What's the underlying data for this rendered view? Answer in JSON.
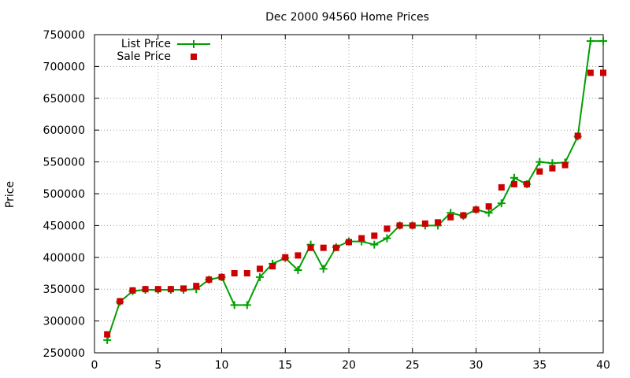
{
  "chart_data": {
    "type": "line",
    "title": "Dec 2000 94560 Home Prices",
    "xlabel": "",
    "ylabel": "Price",
    "xlim": [
      0,
      40
    ],
    "ylim": [
      250000,
      750000
    ],
    "x_ticks": [
      "0",
      "5",
      "10",
      "15",
      "20",
      "25",
      "30",
      "35",
      "40"
    ],
    "y_ticks": [
      "250000",
      "300000",
      "350000",
      "400000",
      "450000",
      "500000",
      "550000",
      "600000",
      "650000",
      "700000",
      "750000"
    ],
    "grid": true,
    "legend_position": "top-left",
    "series": [
      {
        "name": "List Price",
        "style": "line-with-plus-markers",
        "color": "#00a000",
        "x": [
          1,
          2,
          3,
          4,
          5,
          6,
          7,
          8,
          9,
          10,
          11,
          12,
          13,
          14,
          15,
          16,
          17,
          18,
          19,
          20,
          21,
          22,
          23,
          24,
          25,
          26,
          27,
          28,
          29,
          30,
          31,
          32,
          33,
          34,
          35,
          36,
          37,
          38,
          39,
          40
        ],
        "y": [
          270000,
          330000,
          347000,
          349000,
          349000,
          349000,
          349000,
          350000,
          365000,
          369000,
          325000,
          325000,
          369000,
          390000,
          399000,
          380000,
          420000,
          382000,
          416000,
          425000,
          425000,
          420000,
          430000,
          450000,
          450000,
          450000,
          450000,
          470000,
          465000,
          475000,
          470000,
          485000,
          525000,
          515000,
          550000,
          548000,
          549000,
          590000,
          740000,
          740000
        ]
      },
      {
        "name": "Sale Price",
        "style": "square-markers",
        "color": "#cc0000",
        "x": [
          1,
          2,
          3,
          4,
          5,
          6,
          7,
          8,
          9,
          10,
          11,
          12,
          13,
          14,
          15,
          16,
          17,
          18,
          19,
          20,
          21,
          22,
          23,
          24,
          25,
          26,
          27,
          28,
          29,
          30,
          31,
          32,
          33,
          34,
          35,
          36,
          37,
          38,
          39,
          40
        ],
        "y": [
          279000,
          331000,
          348000,
          350000,
          350000,
          350000,
          351000,
          355000,
          365000,
          369000,
          375000,
          375000,
          382000,
          386000,
          400000,
          403000,
          415000,
          415000,
          415000,
          424000,
          430000,
          434000,
          445000,
          450000,
          450000,
          453000,
          455000,
          463000,
          466000,
          475000,
          480000,
          510000,
          515000,
          515000,
          535000,
          540000,
          545000,
          591000,
          690000,
          690000
        ]
      }
    ]
  }
}
